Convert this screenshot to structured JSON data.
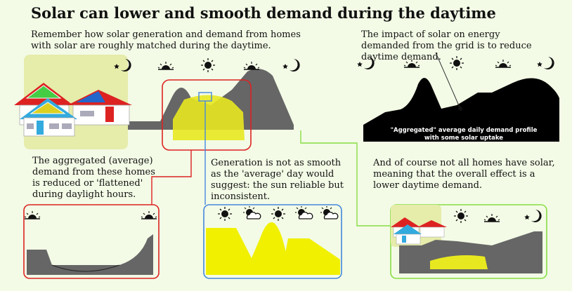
{
  "title": "Solar can lower and smooth demand during the daytime",
  "texts": {
    "remember": "Remember how solar generation and demand from homes with solar are roughly matched during the daytime.",
    "impact": "The impact of solar on energy demanded from the grid is to reduce daytime demand.",
    "aggregated": "The aggregated (average) demand from these homes is reduced or 'flattened' during daylight hours.",
    "generation": "Generation is not as smooth as the 'average' day would suggest: the sun reliable but inconsistent.",
    "notall": "And of course not all homes have solar, meaning that the overall effect is a lower daytime demand."
  },
  "grid_caption_line1": "\"Aggregated\" average daily demand profile",
  "grid_caption_line2": "with some solar uptake",
  "colors": {
    "background": "#f3fbe6",
    "demand_grey": "#666666",
    "solar_yellow": "#e8e800",
    "red_frame": "#dd2222",
    "blue_frame": "#4488dd",
    "green_frame": "#88dd44"
  },
  "icons": [
    "moon-star-icon",
    "sunrise-icon",
    "sun-icon",
    "sunset-icon",
    "partly-cloudy-icon"
  ]
}
